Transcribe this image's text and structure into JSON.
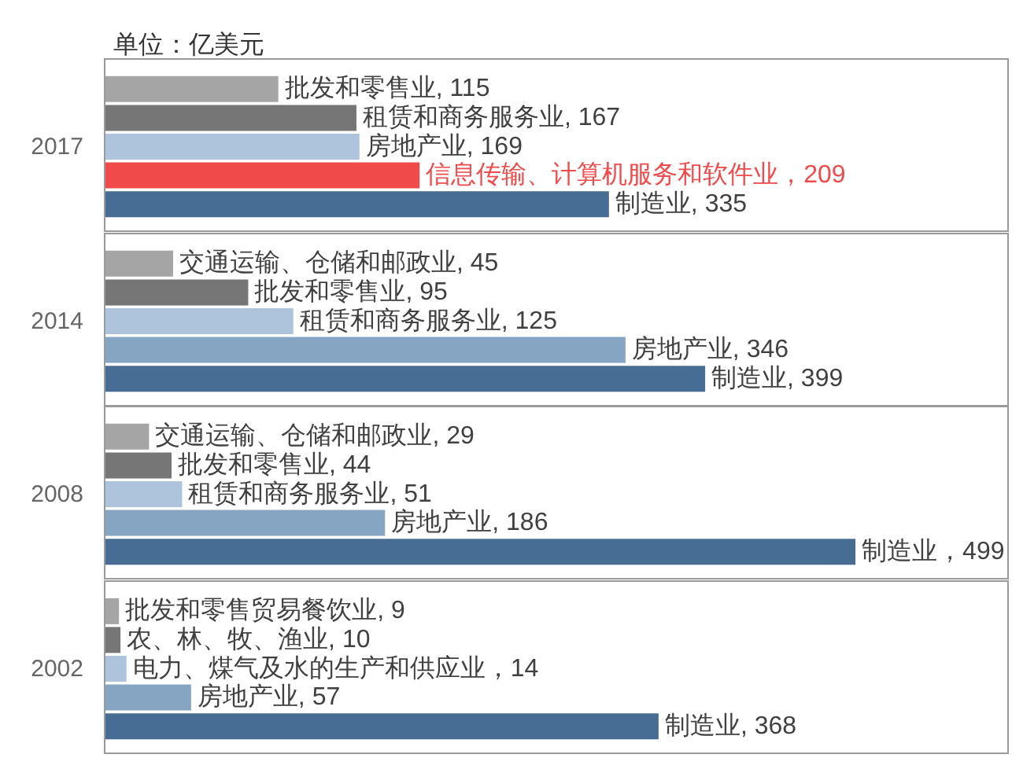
{
  "chart_data": [
    {
      "type": "bar",
      "orientation": "horizontal",
      "title": "单位：亿美元",
      "ylabel": "2017",
      "categories": [
        null,
        null,
        null,
        null,
        null
      ],
      "values": [
        115,
        167,
        169,
        209,
        335
      ],
      "colors": [
        "#a5a5a5",
        "#767676",
        "#adc4dc",
        "#f04a4a",
        "#476d94"
      ],
      "value_labels": [
        "批发和零售业, 115",
        "租赁和商务服务业, 167",
        "房地产业, 169",
        "信息传输、计算机服务和软件业，209",
        "制造业, 335"
      ],
      "xlim": [
        0,
        600
      ],
      "tick_labels": false
    },
    {
      "type": "bar",
      "orientation": "horizontal",
      "ylabel": "2014",
      "categories": [
        null,
        null,
        null,
        null,
        null
      ],
      "values": [
        45,
        95,
        125,
        346,
        399
      ],
      "colors": [
        "#a5a5a5",
        "#767676",
        "#adc4dc",
        "#86a5c3",
        "#476d94"
      ],
      "value_labels": [
        "交通运输、仓储和邮政业, 45",
        "批发和零售业, 95",
        "租赁和商务服务业, 125",
        "房地产业, 346",
        "制造业, 399"
      ],
      "xlim": [
        0,
        600
      ],
      "tick_labels": false
    },
    {
      "type": "bar",
      "orientation": "horizontal",
      "ylabel": "2008",
      "categories": [
        null,
        null,
        null,
        null,
        null
      ],
      "values": [
        29,
        44,
        51,
        186,
        499
      ],
      "colors": [
        "#a5a5a5",
        "#767676",
        "#adc4dc",
        "#86a5c3",
        "#476d94"
      ],
      "value_labels": [
        "交通运输、仓储和邮政业, 29",
        "批发和零售业, 44",
        "租赁和商务服务业, 51",
        "房地产业, 186",
        "制造业，499"
      ],
      "xlim": [
        0,
        600
      ],
      "tick_labels": false
    },
    {
      "type": "bar",
      "orientation": "horizontal",
      "ylabel": "2002",
      "categories": [
        null,
        null,
        null,
        null,
        null
      ],
      "values": [
        9,
        10,
        14,
        57,
        368
      ],
      "colors": [
        "#a5a5a5",
        "#767676",
        "#adc4dc",
        "#86a5c3",
        "#476d94"
      ],
      "value_labels": [
        "批发和零售贸易餐饮业, 9",
        "农、林、牧、渔业, 10",
        "电力、煤气及水的生产和供应业，14",
        "房地产业, 57",
        "制造业, 368"
      ],
      "xlim": [
        0,
        600
      ],
      "tick_labels": false
    }
  ]
}
